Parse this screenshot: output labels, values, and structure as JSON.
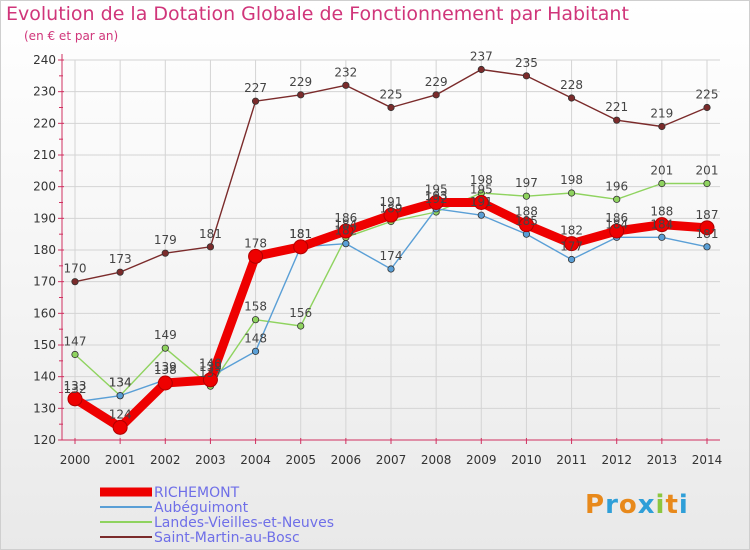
{
  "title": "Evolution de la Dotation Globale de Fonctionnement par Habitant",
  "subtitle": "(en € et par an)",
  "logo": {
    "text": "Proxiti",
    "letters": [
      "P",
      "r",
      "o",
      "x",
      "i",
      "t",
      "i"
    ],
    "colors": [
      "#e8891b",
      "#2f9fd8",
      "#e8891b",
      "#2f9fd8",
      "#8cc63f",
      "#e8891b",
      "#2f9fd8"
    ]
  },
  "chart_data": {
    "type": "line",
    "title": "Evolution de la Dotation Globale de Fonctionnement par Habitant",
    "subtitle": "(en € et par an)",
    "xlabel": "",
    "ylabel": "",
    "ylim": [
      120,
      240
    ],
    "yticks": [
      120,
      130,
      140,
      150,
      160,
      170,
      180,
      190,
      200,
      210,
      220,
      230,
      240
    ],
    "grid": true,
    "legend": "bottom-left",
    "categories": [
      "2000",
      "2001",
      "2002",
      "2003",
      "2004",
      "2005",
      "2006",
      "2007",
      "2008",
      "2009",
      "2010",
      "2011",
      "2012",
      "2013",
      "2014"
    ],
    "series": [
      {
        "name": "Saint-Martin-au-Bosc",
        "color": "#7b2b2b",
        "values": [
          170,
          173,
          179,
          181,
          227,
          229,
          232,
          225,
          229,
          237,
          235,
          228,
          221,
          219,
          225
        ],
        "labels": [
          "170",
          "173",
          "179",
          "181",
          "227",
          "229",
          "232",
          "225",
          "229",
          "237",
          "235",
          "228",
          "221",
          "219",
          "225"
        ]
      },
      {
        "name": "Landes-Vieilles-et-Neuves",
        "color": "#8fd35f",
        "values": [
          147,
          134,
          149,
          137,
          158,
          156,
          184,
          189,
          192,
          198,
          197,
          198,
          196,
          201,
          201
        ],
        "labels": [
          "147",
          "134",
          "149",
          "137",
          "158",
          "156",
          "184",
          "189",
          "192",
          "198",
          "197",
          "198",
          "196",
          "201",
          "201"
        ]
      },
      {
        "name": "Aubéguimont",
        "color": "#5a9fd6",
        "values": [
          132,
          134,
          139,
          140,
          148,
          181,
          182,
          174,
          193,
          191,
          185,
          177,
          184,
          184,
          181
        ],
        "labels": [
          "132",
          "134",
          "139",
          "140",
          "148",
          "181",
          "182",
          "174",
          "193",
          "191",
          "185",
          "177",
          "184",
          "184",
          "181"
        ]
      },
      {
        "name": "RICHEMONT",
        "color": "#ee0000",
        "values": [
          133,
          124,
          138,
          139,
          178,
          181,
          186,
          191,
          195,
          195,
          188,
          182,
          186,
          188,
          187
        ],
        "labels": [
          "133",
          "124",
          "138",
          "139",
          "178",
          "181",
          "186",
          "191",
          "195",
          "195",
          "188",
          "182",
          "186",
          "188",
          "187"
        ]
      }
    ],
    "legend_entries": [
      "RICHEMONT",
      "Aubéguimont",
      "Landes-Vieilles-et-Neuves",
      "Saint-Martin-au-Bosc"
    ]
  }
}
